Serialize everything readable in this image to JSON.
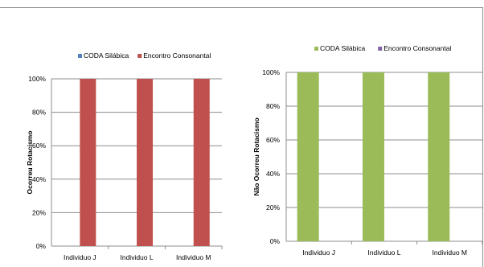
{
  "chart_data": [
    {
      "type": "bar",
      "categories": [
        "Individuo J",
        "Individuo L",
        "Individuo M"
      ],
      "series": [
        {
          "name": "CODA Silábica",
          "values": [
            0,
            0,
            0
          ],
          "color": "#4f81bd"
        },
        {
          "name": "Encontro Consonantal",
          "values": [
            100,
            100,
            100
          ],
          "color": "#c0504d"
        }
      ],
      "ylabel": "Ocorreu Rotacismo",
      "yticks": [
        "0%",
        "20%",
        "40%",
        "60%",
        "80%",
        "100%"
      ],
      "ylim": [
        0,
        100
      ],
      "grid": true,
      "legend": "top"
    },
    {
      "type": "bar",
      "categories": [
        "Individuo J",
        "Individuo L",
        "Individuo M"
      ],
      "series": [
        {
          "name": "CODA Silábica",
          "values": [
            100,
            100,
            100
          ],
          "color": "#9bbb59"
        },
        {
          "name": "Encontro Consonantal",
          "values": [
            0,
            0,
            0
          ],
          "color": "#8064a2"
        }
      ],
      "ylabel": "Não Ocorreu Rotacismo",
      "yticks": [
        "0%",
        "20%",
        "40%",
        "60%",
        "80%",
        "100%"
      ],
      "ylim": [
        0,
        100
      ],
      "grid": true,
      "legend": "top"
    }
  ]
}
